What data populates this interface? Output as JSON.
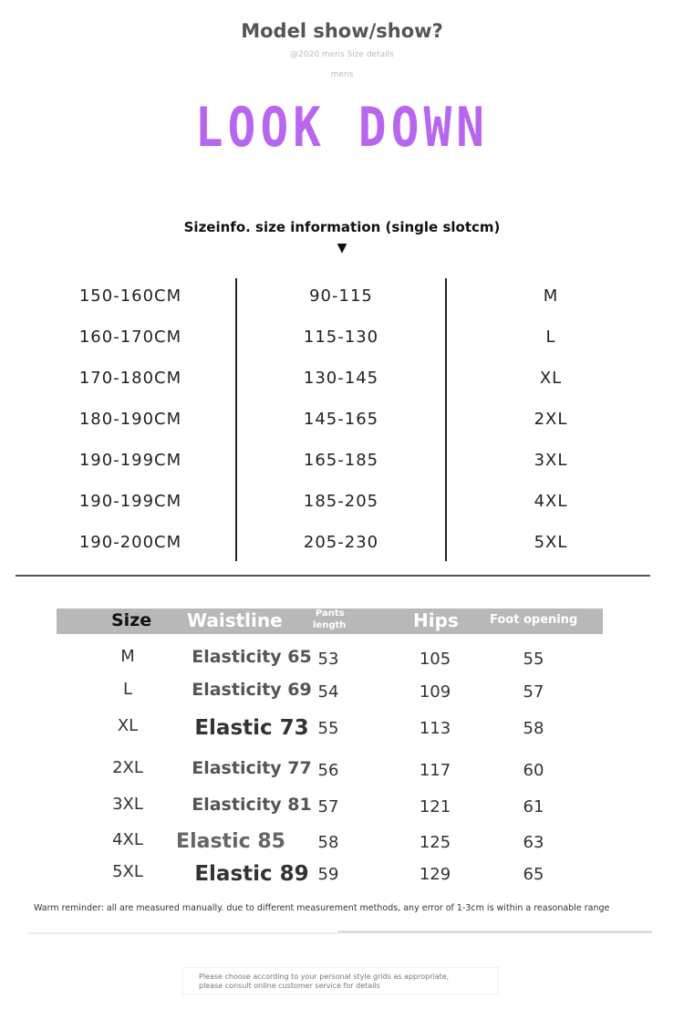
{
  "title": "Model show/show?",
  "faint_line1": "@2020 mens Size details",
  "faint_line2": "mens",
  "banner": "LOOK DOWN",
  "banner_color": "#b866f0",
  "subtitle": "Sizeinfo. size information (single slotcm)",
  "arrow": "▼",
  "size_info": [
    {
      "height": "150-160CM",
      "weight": "90-115",
      "size": "M"
    },
    {
      "height": "160-170CM",
      "weight": "115-130",
      "size": "L"
    },
    {
      "height": "170-180CM",
      "weight": "130-145",
      "size": "XL"
    },
    {
      "height": "180-190CM",
      "weight": "145-165",
      "size": "2XL"
    },
    {
      "height": "190-199CM",
      "weight": "165-185",
      "size": "3XL"
    },
    {
      "height": "190-199CM",
      "weight": "185-205",
      "size": "4XL"
    },
    {
      "height": "190-200CM",
      "weight": "205-230",
      "size": "5XL"
    }
  ],
  "measure_table": {
    "headers": {
      "size": "Size",
      "waist": "Waistline",
      "pants1": "Pants",
      "pants2": "length",
      "hips": "Hips",
      "foot": "Foot opening"
    },
    "rows": [
      {
        "size": "M",
        "waist": "Elasticity 65",
        "pants": "53",
        "hips": "105",
        "foot": "55"
      },
      {
        "size": "L",
        "waist": "Elasticity 69",
        "pants": "54",
        "hips": "109",
        "foot": "57"
      },
      {
        "size": "XL",
        "waist": "Elastic 73",
        "pants": "55",
        "hips": "113",
        "foot": "58"
      },
      {
        "size": "2XL",
        "waist": "Elasticity 77",
        "pants": "56",
        "hips": "117",
        "foot": "60"
      },
      {
        "size": "3XL",
        "waist": "Elasticity 81",
        "pants": "57",
        "hips": "121",
        "foot": "61"
      },
      {
        "size": "4XL",
        "waist": "Elastic 85",
        "pants": "58",
        "hips": "125",
        "foot": "63"
      },
      {
        "size": "5XL",
        "waist": "Elastic 89",
        "pants": "59",
        "hips": "129",
        "foot": "65"
      }
    ]
  },
  "reminder": "Warm reminder: all are measured manually. due to different measurement methods, any error of 1-3cm is within a reasonable range",
  "footer_line1": "Please choose according to your personal style grids as appropriate,",
  "footer_line2": "please consult online customer service for details"
}
